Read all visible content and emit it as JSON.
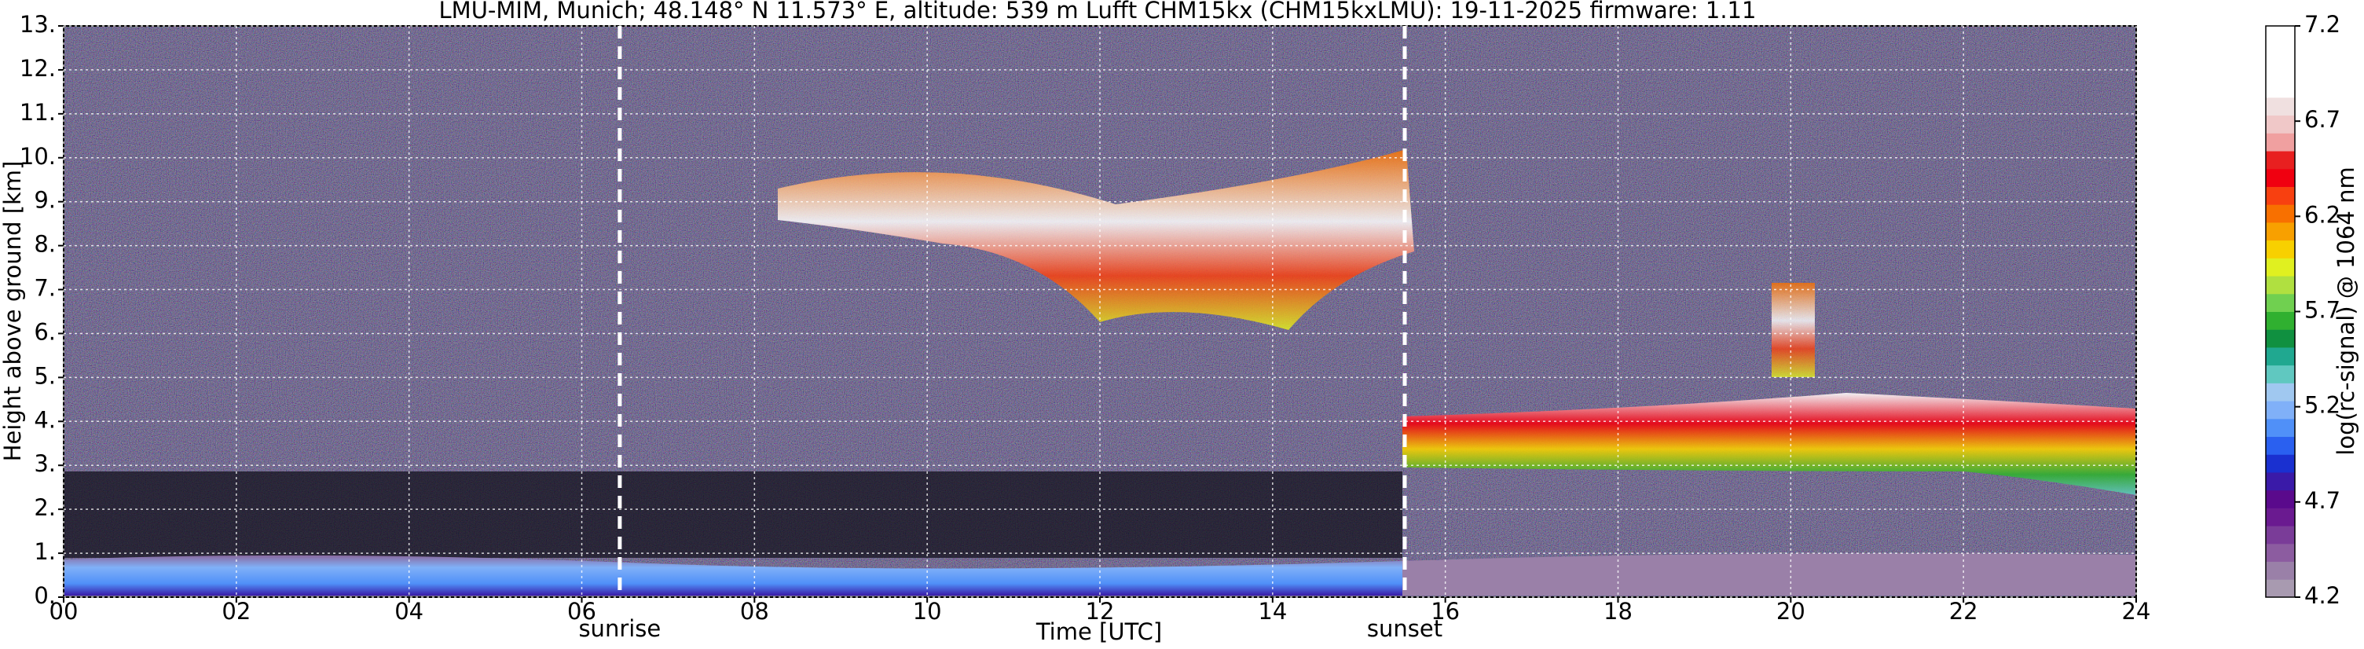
{
  "chart_data": {
    "type": "heatmap",
    "title": "LMU-MIM, Munich; 48.148° N 11.573° E, altitude: 539 m    Lufft CHM15kx (CHM15kxLMU): 19-11-2025    firmware: 1.11",
    "x_label": "Time [UTC]",
    "y_label": "Height above ground [km]",
    "xlim": [
      0,
      24
    ],
    "xticks": [
      {
        "value": 0,
        "label": "00"
      },
      {
        "value": 2,
        "label": "02"
      },
      {
        "value": 4,
        "label": "04"
      },
      {
        "value": 6,
        "label": "06"
      },
      {
        "value": 8,
        "label": "08"
      },
      {
        "value": 10,
        "label": "10"
      },
      {
        "value": 12,
        "label": "12"
      },
      {
        "value": 14,
        "label": "14"
      },
      {
        "value": 16,
        "label": "16"
      },
      {
        "value": 18,
        "label": "18"
      },
      {
        "value": 20,
        "label": "20"
      },
      {
        "value": 22,
        "label": "22"
      },
      {
        "value": 24,
        "label": "24"
      }
    ],
    "ylim": [
      0,
      13
    ],
    "yticks": [
      {
        "value": 0,
        "label": "0."
      },
      {
        "value": 1,
        "label": "1."
      },
      {
        "value": 2,
        "label": "2."
      },
      {
        "value": 3,
        "label": "3."
      },
      {
        "value": 4,
        "label": "4."
      },
      {
        "value": 5,
        "label": "5."
      },
      {
        "value": 6,
        "label": "6."
      },
      {
        "value": 7,
        "label": "7."
      },
      {
        "value": 8,
        "label": "8."
      },
      {
        "value": 9,
        "label": "9."
      },
      {
        "value": 10,
        "label": "10."
      },
      {
        "value": 11,
        "label": "11."
      },
      {
        "value": 12,
        "label": "12."
      },
      {
        "value": 13,
        "label": "13."
      }
    ],
    "grid": true,
    "markers": [
      {
        "x": 6.44,
        "label": "sunrise"
      },
      {
        "x": 15.53,
        "label": "sunset"
      }
    ],
    "colorbar": {
      "label": "log(rc-signal) @ 1064 nm",
      "lim": [
        4.2,
        7.2
      ],
      "ticks": [
        4.2,
        4.7,
        5.2,
        5.7,
        6.2,
        6.7,
        7.2
      ],
      "colors": [
        "#a89ab0",
        "#9a80a8",
        "#8c5ca0",
        "#7a3c98",
        "#6a1a90",
        "#5a0a8c",
        "#3a1aa8",
        "#1a30d0",
        "#2a60f0",
        "#5090f8",
        "#80b0f8",
        "#a0c8f0",
        "#60c8c0",
        "#20a890",
        "#109040",
        "#30b030",
        "#70d050",
        "#b0e040",
        "#e0f020",
        "#f8d000",
        "#f8a000",
        "#f87000",
        "#f84010",
        "#f00010",
        "#e82020",
        "#f0a0a0",
        "#f0c8c8",
        "#f0e0e0",
        "#ffffff",
        "#ffffff",
        "#ffffff",
        "#ffffff"
      ]
    }
  }
}
